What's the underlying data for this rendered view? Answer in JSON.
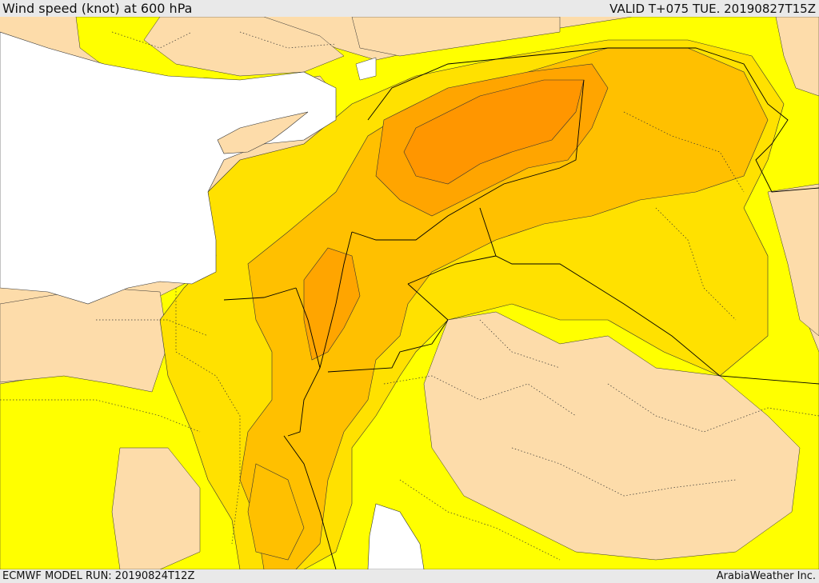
{
  "header": {
    "title": "Wind speed (knot) at 600 hPa",
    "valid": "VALID T+075 TUE. 20190827T15Z"
  },
  "footer": {
    "model_run": "ECMWF MODEL RUN: 20190824T12Z",
    "credit": "ArabiaWeather Inc."
  },
  "colors": {
    "sea": "#ffffff",
    "land_low": "#fddcaa",
    "band_yellow": "#ffff00",
    "band_gold": "#ffe100",
    "band_amber": "#ffc000",
    "band_orange": "#ffa500",
    "band_dark_orange": "#ff9600",
    "border": "#000000"
  }
}
